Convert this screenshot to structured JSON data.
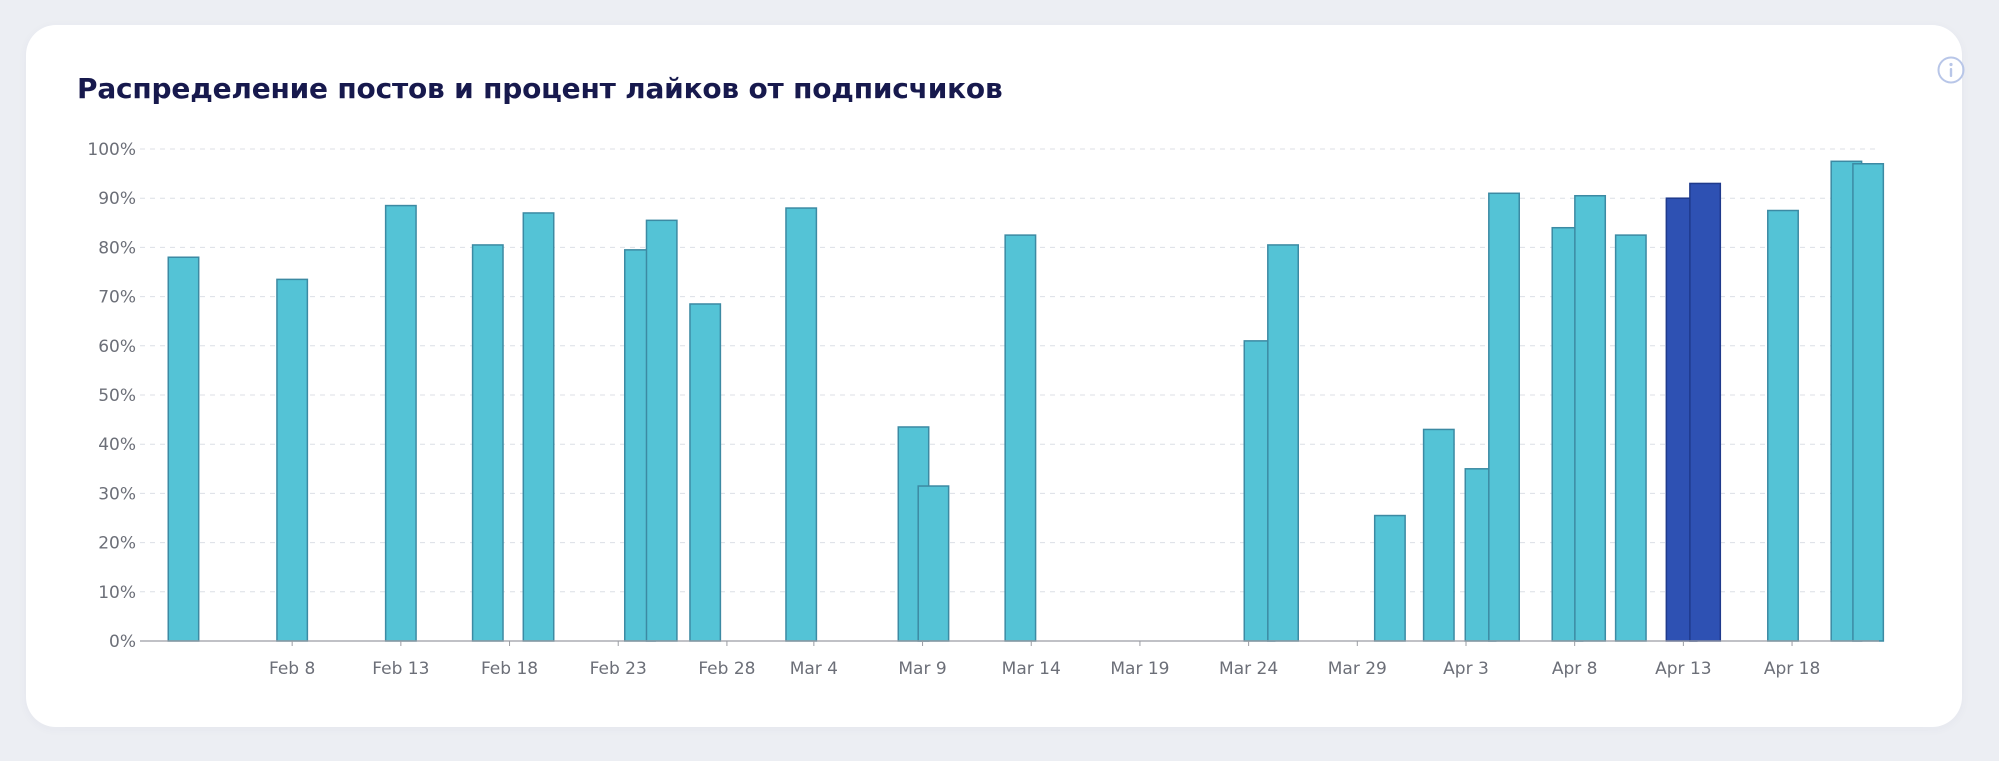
{
  "header": {
    "title": "Распределение постов и процент лайков от подписчиков",
    "info_icon": "info-icon"
  },
  "colors": {
    "bar": "#54c3d6",
    "bar_stroke": "#3c8aa3",
    "bar_highlight": "#2e51b3",
    "bar_highlight_stroke": "#1f3a8c",
    "grid": "#dcdfe6",
    "axis": "#9a9ca3",
    "info_icon": "#b8c6e8"
  },
  "chart_data": {
    "type": "bar",
    "title": "Распределение постов и процент лайков от подписчиков",
    "xlabel": "",
    "ylabel": "",
    "ylim": [
      0,
      100
    ],
    "yticks": [
      "0%",
      "10%",
      "20%",
      "30%",
      "40%",
      "50%",
      "60%",
      "70%",
      "80%",
      "90%",
      "100%"
    ],
    "xlim": [
      "2021-02-01T00:00",
      "2021-04-22T00:00"
    ],
    "xticks": [
      {
        "label": "Feb 8",
        "date": "2021-02-08T00:00"
      },
      {
        "label": "Feb 13",
        "date": "2021-02-13T00:00"
      },
      {
        "label": "Feb 18",
        "date": "2021-02-18T00:00"
      },
      {
        "label": "Feb 23",
        "date": "2021-02-23T00:00"
      },
      {
        "label": "Feb 28",
        "date": "2021-02-28T00:00"
      },
      {
        "label": "Mar 4",
        "date": "2021-03-04T00:00"
      },
      {
        "label": "Mar 9",
        "date": "2021-03-09T00:00"
      },
      {
        "label": "Mar 14",
        "date": "2021-03-14T00:00"
      },
      {
        "label": "Mar 19",
        "date": "2021-03-19T00:00"
      },
      {
        "label": "Mar 24",
        "date": "2021-03-24T00:00"
      },
      {
        "label": "Mar 29",
        "date": "2021-03-29T00:00"
      },
      {
        "label": "Apr 3",
        "date": "2021-04-03T00:00"
      },
      {
        "label": "Apr 8",
        "date": "2021-04-08T00:00"
      },
      {
        "label": "Apr 13",
        "date": "2021-04-13T00:00"
      },
      {
        "label": "Apr 18",
        "date": "2021-04-18T00:00"
      }
    ],
    "grid": true,
    "legend": "none",
    "points": [
      {
        "date": "2021-02-03T00:00",
        "value": 78
      },
      {
        "date": "2021-02-08T00:00",
        "value": 73.5
      },
      {
        "date": "2021-02-13T00:00",
        "value": 88.5
      },
      {
        "date": "2021-02-17T00:00",
        "value": 80.5
      },
      {
        "date": "2021-02-19T08:00",
        "value": 87
      },
      {
        "date": "2021-02-24T00:00",
        "value": 79.5
      },
      {
        "date": "2021-02-25T00:00",
        "value": 85.5
      },
      {
        "date": "2021-02-27T00:00",
        "value": 68.5
      },
      {
        "date": "2021-03-03T10:00",
        "value": 88
      },
      {
        "date": "2021-03-08T14:00",
        "value": 43.5
      },
      {
        "date": "2021-03-09T12:00",
        "value": 31.5
      },
      {
        "date": "2021-03-13T12:00",
        "value": 82.5
      },
      {
        "date": "2021-03-24T12:00",
        "value": 61
      },
      {
        "date": "2021-03-25T14:00",
        "value": 80.5
      },
      {
        "date": "2021-03-30T12:00",
        "value": 25.5
      },
      {
        "date": "2021-04-01T18:00",
        "value": 43
      },
      {
        "date": "2021-04-03T16:00",
        "value": 35
      },
      {
        "date": "2021-04-04T18:00",
        "value": 91
      },
      {
        "date": "2021-04-07T16:00",
        "value": 84
      },
      {
        "date": "2021-04-08T17:00",
        "value": 90.5
      },
      {
        "date": "2021-04-10T14:00",
        "value": 82.5
      },
      {
        "date": "2021-04-12T22:00",
        "value": 90,
        "highlight": true
      },
      {
        "date": "2021-04-14T00:00",
        "value": 93,
        "highlight": true
      },
      {
        "date": "2021-04-17T14:00",
        "value": 87.5
      },
      {
        "date": "2021-04-20T12:00",
        "value": 97.5
      },
      {
        "date": "2021-04-21T12:00",
        "value": 97
      }
    ]
  }
}
